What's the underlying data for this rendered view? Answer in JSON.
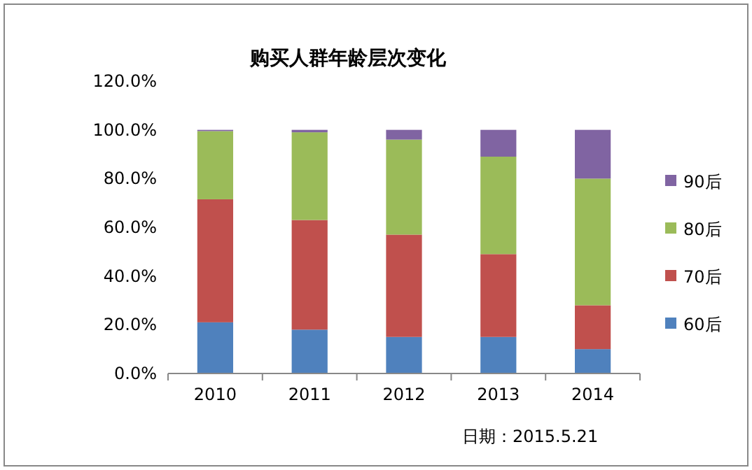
{
  "chart_data": {
    "type": "bar",
    "title": "购买人群年龄层次变化",
    "stacked": true,
    "categories": [
      "2010",
      "2011",
      "2012",
      "2013",
      "2014"
    ],
    "series": [
      {
        "name": "60后",
        "color": "#4f81bd",
        "values": [
          21,
          18,
          15,
          15,
          10
        ]
      },
      {
        "name": "70后",
        "color": "#c0504d",
        "values": [
          50.5,
          45,
          42,
          34,
          18
        ]
      },
      {
        "name": "80后",
        "color": "#9bbb59",
        "values": [
          28,
          36,
          39,
          40,
          52
        ]
      },
      {
        "name": "90后",
        "color": "#8064a2",
        "values": [
          0.5,
          1,
          4,
          11,
          20
        ]
      }
    ],
    "ylim": [
      0,
      120
    ],
    "yticks": [
      {
        "value": 0,
        "label": "0.0%"
      },
      {
        "value": 20,
        "label": "20.0%"
      },
      {
        "value": 40,
        "label": "40.0%"
      },
      {
        "value": 60,
        "label": "60.0%"
      },
      {
        "value": 80,
        "label": "80.0%"
      },
      {
        "value": 100,
        "label": "100.0%"
      },
      {
        "value": 120,
        "label": "120.0%"
      }
    ],
    "legend": "right",
    "annotations": [
      "日期：2015.5.21"
    ]
  }
}
